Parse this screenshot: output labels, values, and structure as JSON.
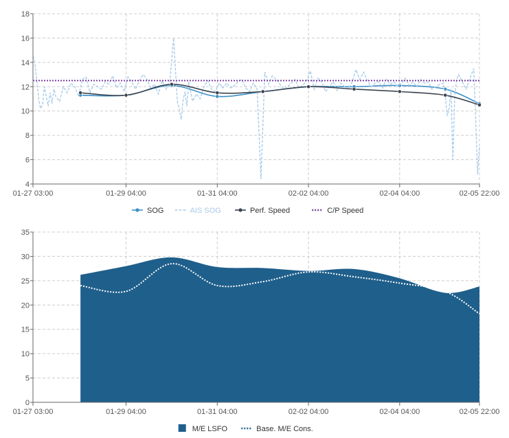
{
  "chart_data": [
    {
      "type": "line",
      "title": "",
      "xlabel": "",
      "ylabel": "",
      "ylim": [
        4,
        18
      ],
      "yticks": [
        "4",
        "6",
        "8",
        "10",
        "12",
        "14",
        "16",
        "18"
      ],
      "xticks": [
        "01-27 03:00",
        "01-29 04:00",
        "01-31 04:00",
        "02-02 04:00",
        "02-04 04:00",
        "02-05 22:00"
      ],
      "xtick_hours": [
        0,
        49,
        97,
        145,
        193,
        235
      ],
      "grid": true,
      "legend_position": "bottom",
      "series": [
        {
          "name": "SOG",
          "color": "#3a8fc7",
          "style": "solid-markers",
          "x": [
            25,
            49,
            73,
            97,
            121,
            145,
            169,
            193,
            217,
            235
          ],
          "y": [
            11.3,
            11.3,
            12.1,
            11.2,
            11.6,
            12.0,
            12.0,
            12.1,
            11.8,
            10.6
          ]
        },
        {
          "name": "AIS SOG",
          "color": "#a9cdea",
          "style": "dashed",
          "x": [
            0,
            1,
            2,
            3,
            4,
            5,
            6,
            7,
            8,
            9,
            10,
            11,
            12,
            14,
            16,
            18,
            20,
            22,
            24,
            26,
            28,
            30,
            32,
            34,
            36,
            38,
            40,
            42,
            44,
            46,
            48,
            50,
            52,
            54,
            56,
            58,
            60,
            62,
            64,
            66,
            68,
            70,
            72,
            74,
            76,
            77,
            78,
            79,
            80,
            81,
            82,
            84,
            86,
            88,
            90,
            92,
            94,
            96,
            98,
            100,
            102,
            104,
            106,
            108,
            110,
            112,
            114,
            116,
            118,
            120,
            122,
            124,
            126,
            128,
            130,
            132,
            134,
            136,
            138,
            140,
            142,
            144,
            146,
            148,
            150,
            152,
            154,
            156,
            158,
            160,
            162,
            164,
            166,
            168,
            170,
            172,
            174,
            176,
            178,
            180,
            182,
            184,
            186,
            188,
            190,
            192,
            194,
            196,
            198,
            200,
            202,
            204,
            206,
            208,
            210,
            212,
            214,
            216,
            217,
            218,
            219,
            220,
            221,
            222,
            223,
            224,
            226,
            228,
            230,
            232,
            233,
            234,
            235
          ],
          "y": [
            14.5,
            14.0,
            12.5,
            11.0,
            10.2,
            10.5,
            12.0,
            11.2,
            10.4,
            11.5,
            10.6,
            11.8,
            11.2,
            10.8,
            12.0,
            11.5,
            12.3,
            12.0,
            11.2,
            12.6,
            12.8,
            11.5,
            12.2,
            12.0,
            11.8,
            12.4,
            12.2,
            12.9,
            11.9,
            12.3,
            11.6,
            12.8,
            12.4,
            11.8,
            12.5,
            13.0,
            12.6,
            11.9,
            12.2,
            11.4,
            12.5,
            11.8,
            12.3,
            16.0,
            10.8,
            10.2,
            9.3,
            10.9,
            11.6,
            10.4,
            12.4,
            10.8,
            11.4,
            11.0,
            12.0,
            12.5,
            11.8,
            11.6,
            12.3,
            11.9,
            12.3,
            11.9,
            12.1,
            12.4,
            12.6,
            11.9,
            11.6,
            12.3,
            11.8,
            4.4,
            13.2,
            12.2,
            12.9,
            12.6,
            12.2,
            11.8,
            12.0,
            12.3,
            12.6,
            11.9,
            12.1,
            12.5,
            13.3,
            11.8,
            12.7,
            12.4,
            11.6,
            12.0,
            12.4,
            11.7,
            12.3,
            12.0,
            11.8,
            12.4,
            13.4,
            12.6,
            13.2,
            12.5,
            12.0,
            12.3,
            12.4,
            11.9,
            12.6,
            12.2,
            12.4,
            12.0,
            12.3,
            12.7,
            12.1,
            12.4,
            12.0,
            12.6,
            12.3,
            12.4,
            11.8,
            12.0,
            12.2,
            12.3,
            11.3,
            9.6,
            10.2,
            11.8,
            6.0,
            11.4,
            12.6,
            13.0,
            12.4,
            11.8,
            12.7,
            13.5,
            9.5,
            4.8,
            7.2
          ]
        },
        {
          "name": "Perf. Speed",
          "color": "#3c4450",
          "style": "solid-markers",
          "x": [
            25,
            49,
            73,
            97,
            121,
            145,
            169,
            193,
            217,
            235
          ],
          "y": [
            11.5,
            11.3,
            12.2,
            11.5,
            11.6,
            12.0,
            11.8,
            11.6,
            11.3,
            10.5
          ]
        },
        {
          "name": "C/P Speed",
          "color": "#7b3fa0",
          "style": "dotted",
          "x": [
            0,
            235
          ],
          "y": [
            12.5,
            12.5
          ]
        }
      ]
    },
    {
      "type": "area",
      "title": "",
      "xlabel": "",
      "ylabel": "",
      "ylim": [
        0,
        35
      ],
      "yticks": [
        "0",
        "5",
        "10",
        "15",
        "20",
        "25",
        "30",
        "35"
      ],
      "xticks": [
        "01-27 03:00",
        "01-29 04:00",
        "01-31 04:00",
        "02-02 04:00",
        "02-04 04:00",
        "02-05 22:00"
      ],
      "xtick_hours": [
        0,
        49,
        97,
        145,
        193,
        235
      ],
      "grid": true,
      "legend_position": "bottom",
      "series": [
        {
          "name": "M/E LSFO",
          "color": "#1f5f8b",
          "style": "area",
          "x": [
            25,
            49,
            73,
            97,
            121,
            145,
            169,
            193,
            217,
            235
          ],
          "y": [
            26.2,
            28.0,
            29.8,
            27.8,
            27.6,
            27.0,
            27.4,
            25.5,
            22.5,
            23.8
          ]
        },
        {
          "name": "Base. M/E Cons.",
          "color": "#ffffff",
          "style": "dotted",
          "x": [
            25,
            49,
            73,
            97,
            121,
            145,
            169,
            193,
            217,
            235
          ],
          "y": [
            24.0,
            22.8,
            28.5,
            24.0,
            24.8,
            26.8,
            25.8,
            24.5,
            22.8,
            18.2
          ]
        }
      ]
    }
  ]
}
